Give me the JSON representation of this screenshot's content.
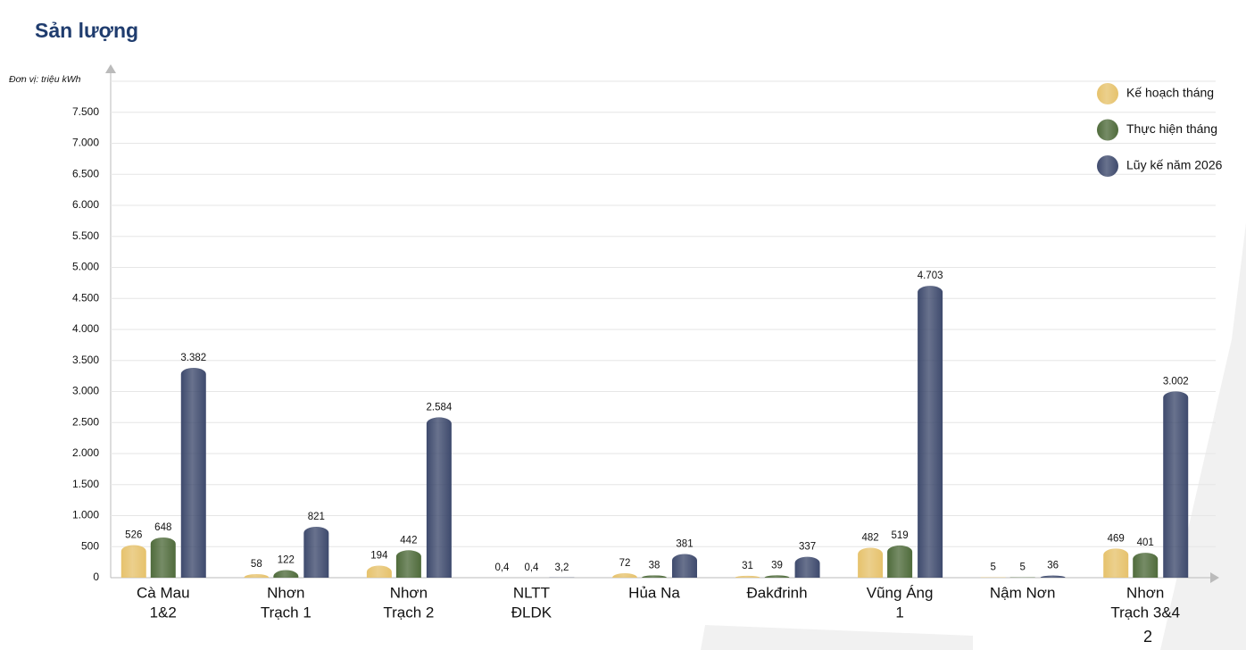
{
  "chart_data": {
    "type": "bar",
    "title": "Sản lượng",
    "y_axis_label": "Đơn vị: triệu kWh",
    "page_number": "2",
    "categories": [
      [
        "Cà Mau",
        "1&2"
      ],
      [
        "Nhơn",
        "Trạch 1"
      ],
      [
        "Nhơn",
        "Trạch 2"
      ],
      [
        "NLTT",
        "ĐLDK"
      ],
      [
        "Hủa Na"
      ],
      [
        "Đakđrinh"
      ],
      [
        "Vũng Áng",
        "1"
      ],
      [
        "Nậm Nơn"
      ],
      [
        "Nhơn",
        "Trạch 3&4"
      ]
    ],
    "series": [
      {
        "name": "Kế hoạch tháng",
        "color": "#e6c26c",
        "values": [
          526,
          58,
          194,
          0.4,
          72,
          31,
          482,
          5,
          469
        ],
        "value_labels": [
          "526",
          "58",
          "194",
          "0,4",
          "72",
          "31",
          "482",
          "5",
          "469"
        ]
      },
      {
        "name": "Thực hiện tháng",
        "color": "#4f6b3b",
        "values": [
          648,
          122,
          442,
          0.4,
          38,
          39,
          519,
          5,
          401
        ],
        "value_labels": [
          "648",
          "122",
          "442",
          "0,4",
          "38",
          "39",
          "519",
          "5",
          "401"
        ]
      },
      {
        "name": "Lũy kế năm 2026",
        "color": "#3e4a6d",
        "values": [
          3382,
          821,
          2584,
          3.2,
          381,
          337,
          4703,
          36,
          3002
        ],
        "value_labels": [
          "3.382",
          "821",
          "2.584",
          "3,2",
          "381",
          "337",
          "4.703",
          "36",
          "3.002"
        ]
      }
    ],
    "ylim": [
      0,
      8000
    ],
    "yticks": [
      0,
      500,
      {
        "value": 1000,
        "label": "1.000"
      },
      {
        "value": 1500,
        "label": "1.500"
      },
      {
        "value": 2000,
        "label": "2.000"
      },
      {
        "value": 2500,
        "label": "2.500"
      },
      {
        "value": 3000,
        "label": "3.000"
      },
      {
        "value": 3500,
        "label": "3.500"
      },
      {
        "value": 4000,
        "label": "4.000"
      },
      {
        "value": 4500,
        "label": "4.500"
      },
      {
        "value": 5000,
        "label": "5.000"
      },
      {
        "value": 5500,
        "label": "5.500"
      },
      {
        "value": 6000,
        "label": "6.000"
      },
      {
        "value": 6500,
        "label": "6.500"
      },
      {
        "value": 7000,
        "label": "7.000"
      },
      {
        "value": 7500,
        "label": "7.500"
      }
    ],
    "grid": true,
    "legend": "top-right"
  }
}
